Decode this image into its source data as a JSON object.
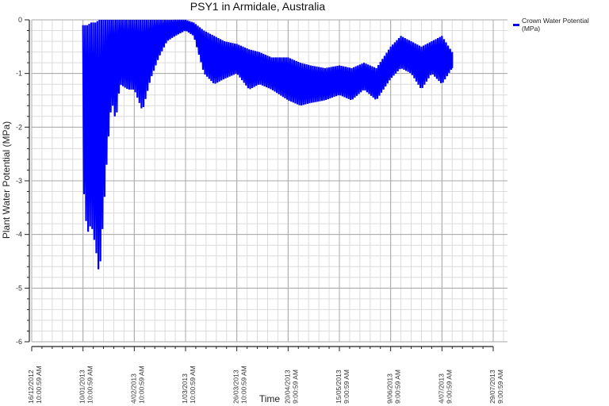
{
  "chart_data": {
    "type": "line",
    "title": "PSY1 in Armidale, Australia",
    "xlabel": "Time",
    "ylabel": "Plant Water Potential (MPa)",
    "ylim": [
      -6,
      0
    ],
    "yticks": [
      0,
      -1,
      -2,
      -3,
      -4,
      -5,
      -6
    ],
    "xticks": [
      {
        "date": "16/12/2012",
        "time": "10:00:59 AM"
      },
      {
        "date": "10/01/2013",
        "time": "10:00:59 AM"
      },
      {
        "date": "4/02/2013",
        "time": "10:00:59 AM"
      },
      {
        "date": "1/03/2013",
        "time": "10:00:59 AM"
      },
      {
        "date": "26/03/2013",
        "time": "10:00:59 AM"
      },
      {
        "date": "20/04/2013",
        "time": "9:00:59 AM"
      },
      {
        "date": "15/05/2013",
        "time": "9:00:59 AM"
      },
      {
        "date": "9/06/2013",
        "time": "9:00:59 AM"
      },
      {
        "date": "4/07/2013",
        "time": "9:00:59 AM"
      },
      {
        "date": "29/07/2013",
        "time": "9:00:59 AM"
      }
    ],
    "grid": true,
    "legend_position": "right",
    "series": [
      {
        "name": "Crown Water Potential (MPa)",
        "color": "#0000ff",
        "envelope": {
          "description": "Daily oscillation envelope (approx min/max per date)",
          "x": [
            "10/01/2013",
            "12/01/2013",
            "14/01/2013",
            "16/01/2013",
            "18/01/2013",
            "20/01/2013",
            "22/01/2013",
            "24/01/2013",
            "26/01/2013",
            "28/01/2013",
            "1/02/2013",
            "4/02/2013",
            "8/02/2013",
            "12/02/2013",
            "16/02/2013",
            "20/02/2013",
            "24/02/2013",
            "1/03/2013",
            "5/03/2013",
            "10/03/2013",
            "15/03/2013",
            "20/03/2013",
            "26/03/2013",
            "1/04/2013",
            "6/04/2013",
            "12/04/2013",
            "20/04/2013",
            "26/04/2013",
            "1/05/2013",
            "8/05/2013",
            "15/05/2013",
            "21/05/2013",
            "27/05/2013",
            "2/06/2013",
            "9/06/2013",
            "14/06/2013",
            "19/06/2013",
            "24/06/2013",
            "29/06/2013",
            "4/07/2013",
            "9/07/2013"
          ],
          "max": [
            -0.1,
            -0.1,
            -0.05,
            -0.05,
            0,
            0,
            0,
            0,
            0,
            0,
            0,
            0,
            0,
            0,
            0,
            0,
            0,
            0,
            -0.05,
            -0.2,
            -0.3,
            -0.4,
            -0.45,
            -0.55,
            -0.6,
            -0.7,
            -0.7,
            -0.8,
            -0.85,
            -0.9,
            -0.85,
            -0.9,
            -0.8,
            -0.9,
            -0.5,
            -0.3,
            -0.4,
            -0.5,
            -0.4,
            -0.3,
            -0.6
          ],
          "min": [
            -3.0,
            -4.0,
            -3.8,
            -4.2,
            -4.8,
            -3.6,
            -2.4,
            -1.5,
            -1.9,
            -1.2,
            -1.3,
            -1.3,
            -1.7,
            -1.1,
            -0.7,
            -0.4,
            -0.3,
            -0.2,
            -0.3,
            -1.0,
            -1.2,
            -1.1,
            -1.0,
            -1.3,
            -1.2,
            -1.3,
            -1.5,
            -1.6,
            -1.55,
            -1.5,
            -1.4,
            -1.5,
            -1.3,
            -1.5,
            -1.1,
            -0.9,
            -1.0,
            -1.3,
            -1.0,
            -1.2,
            -0.9
          ]
        }
      }
    ]
  },
  "legend": {
    "label": "Crown Water Potential (MPa)",
    "color": "#0000ff"
  }
}
